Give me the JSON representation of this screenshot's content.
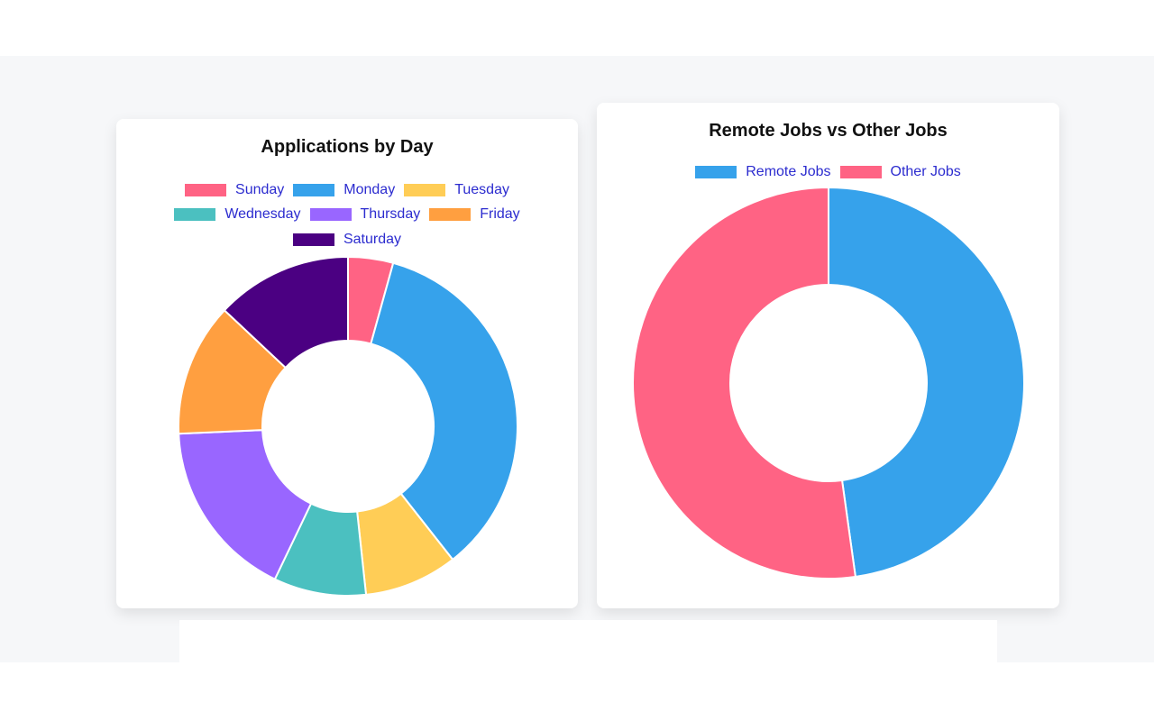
{
  "chart_data": [
    {
      "type": "pie",
      "title": "Applications by Day",
      "categories": [
        "Sunday",
        "Monday",
        "Tuesday",
        "Wednesday",
        "Thursday",
        "Friday",
        "Saturday"
      ],
      "values": [
        4.3,
        35.1,
        8.9,
        8.8,
        17.2,
        12.7,
        13.0
      ],
      "colors": [
        "#ff6384",
        "#36a2eb",
        "#ffcd56",
        "#4bc0c0",
        "#9966ff",
        "#ff9f40",
        "#4b0082"
      ],
      "legend_position": "top"
    },
    {
      "type": "pie",
      "title": "Remote Jobs vs Other Jobs",
      "categories": [
        "Remote Jobs",
        "Other Jobs"
      ],
      "values": [
        47.8,
        52.2
      ],
      "colors": [
        "#36a2eb",
        "#ff6384"
      ],
      "legend_position": "top"
    }
  ]
}
